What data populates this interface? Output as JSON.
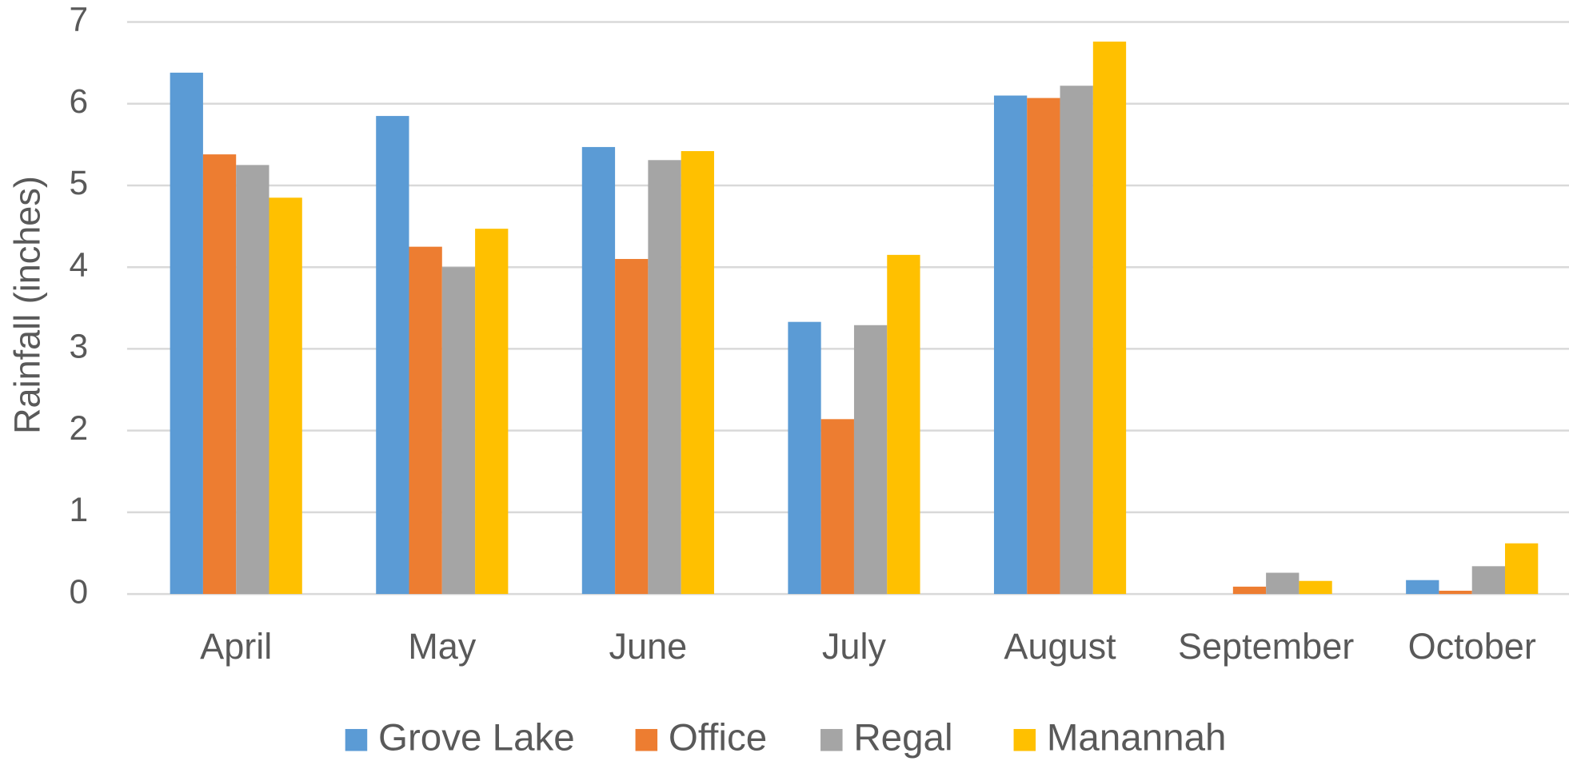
{
  "chart_data": {
    "type": "bar",
    "y_label": "Rainfall (inches)",
    "categories": [
      "April",
      "May",
      "June",
      "July",
      "August",
      "September",
      "October"
    ],
    "series": [
      {
        "name": "Grove Lake",
        "color": "#5b9bd5",
        "values": [
          6.38,
          5.85,
          5.47,
          3.33,
          6.1,
          0,
          0.17
        ]
      },
      {
        "name": "Office",
        "color": "#ed7d31",
        "values": [
          5.38,
          4.25,
          4.1,
          2.14,
          6.07,
          0.09,
          0.04
        ]
      },
      {
        "name": "Regal",
        "color": "#a5a5a5",
        "values": [
          5.25,
          4.0,
          5.31,
          3.29,
          6.22,
          0.26,
          0.34
        ]
      },
      {
        "name": "Manannah",
        "color": "#ffc000",
        "values": [
          4.85,
          4.47,
          5.42,
          4.15,
          6.76,
          0.16,
          0.62
        ]
      }
    ],
    "ylim": [
      0,
      7
    ],
    "yticks": [
      0,
      1,
      2,
      3,
      4,
      5,
      6,
      7
    ],
    "grid": true,
    "legend": "bottom"
  }
}
